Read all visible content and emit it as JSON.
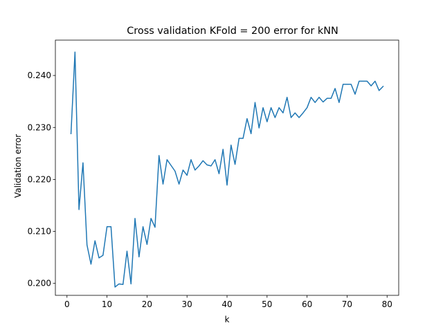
{
  "chart_data": {
    "type": "line",
    "title": "Cross validation KFold = 200 error for kNN",
    "xlabel": "k",
    "ylabel": "Validation error",
    "xlim": [
      -2.9,
      82.9
    ],
    "ylim": [
      0.1977,
      0.2468
    ],
    "xticks": [
      0,
      10,
      20,
      30,
      40,
      50,
      60,
      70,
      80
    ],
    "xtick_labels": [
      "0",
      "10",
      "20",
      "30",
      "40",
      "50",
      "60",
      "70",
      "80"
    ],
    "yticks": [
      0.2,
      0.21,
      0.22,
      0.23,
      0.24
    ],
    "ytick_labels": [
      "0.200",
      "0.210",
      "0.220",
      "0.230",
      "0.240"
    ],
    "grid": false,
    "color": "#1f77b4",
    "series": [
      {
        "x": [
          1,
          2,
          3,
          4,
          5,
          6,
          7,
          8,
          9,
          10,
          11,
          12,
          13,
          14,
          15,
          16,
          17,
          18,
          19,
          20,
          21,
          22,
          23,
          24,
          25,
          26,
          27,
          28,
          29,
          30,
          31,
          32,
          33,
          34,
          35,
          36,
          37,
          38,
          39,
          40,
          41,
          42,
          43,
          44,
          45,
          46,
          47,
          48,
          49,
          50,
          51,
          52,
          53,
          54,
          55,
          56,
          57,
          58,
          59,
          60,
          61,
          62,
          63,
          64,
          65,
          66,
          67,
          68,
          69,
          70,
          71,
          72,
          73,
          74,
          75,
          76,
          77,
          78,
          79
        ],
        "values": [
          0.2288,
          0.2445,
          0.2142,
          0.2232,
          0.2074,
          0.2037,
          0.2082,
          0.2049,
          0.2054,
          0.2109,
          0.2109,
          0.1993,
          0.1999,
          0.1998,
          0.2062,
          0.1999,
          0.2125,
          0.2051,
          0.2109,
          0.2075,
          0.2125,
          0.2108,
          0.2246,
          0.2191,
          0.2238,
          0.2227,
          0.2216,
          0.2191,
          0.2218,
          0.2208,
          0.2238,
          0.2218,
          0.2226,
          0.2236,
          0.2228,
          0.2226,
          0.2238,
          0.2211,
          0.2258,
          0.2189,
          0.2266,
          0.2229,
          0.2279,
          0.2279,
          0.2317,
          0.2288,
          0.2348,
          0.2299,
          0.2338,
          0.2311,
          0.2338,
          0.2319,
          0.2338,
          0.2328,
          0.2358,
          0.2319,
          0.2328,
          0.2319,
          0.2328,
          0.2338,
          0.2358,
          0.2348,
          0.2358,
          0.2349,
          0.2356,
          0.2356,
          0.2375,
          0.2348,
          0.2383,
          0.2383,
          0.2383,
          0.2364,
          0.2389,
          0.2389,
          0.2389,
          0.238,
          0.2389,
          0.2371,
          0.2379
        ]
      }
    ]
  }
}
